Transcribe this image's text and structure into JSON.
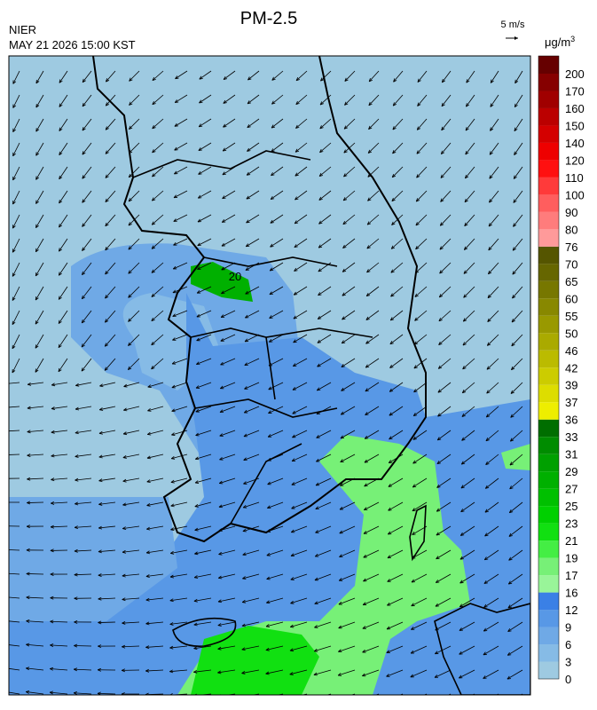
{
  "header": {
    "title": "PM-2.5",
    "agency": "NIER",
    "timestamp": "MAY 21 2026 15:00 KST"
  },
  "wind_scale": {
    "label": "5 m/s"
  },
  "colorbar": {
    "unit": "μg/m",
    "unit_exponent": "3",
    "levels": [
      0,
      3,
      6,
      9,
      12,
      16,
      17,
      19,
      21,
      23,
      25,
      27,
      29,
      31,
      33,
      36,
      37,
      39,
      42,
      46,
      50,
      55,
      60,
      65,
      70,
      76,
      80,
      90,
      100,
      110,
      120,
      140,
      150,
      160,
      170,
      200
    ],
    "colors": [
      "#9ecae1",
      "#86bbe6",
      "#6fa9e6",
      "#5898e6",
      "#3a80e6",
      "#99f599",
      "#77f077",
      "#44ee44",
      "#11e011",
      "#00d000",
      "#00c000",
      "#00b000",
      "#00a000",
      "#008c00",
      "#006e00",
      "#eeee00",
      "#dddd00",
      "#cccc00",
      "#bbbb00",
      "#aaaa00",
      "#999900",
      "#888800",
      "#777700",
      "#666600",
      "#555500",
      "#ff9a9a",
      "#ff7c7c",
      "#ff5e5e",
      "#ff3a3a",
      "#ff1010",
      "#ee0000",
      "#d40000",
      "#bb0000",
      "#a00000",
      "#860000",
      "#660000"
    ]
  },
  "map": {
    "contour_label": "20"
  }
}
